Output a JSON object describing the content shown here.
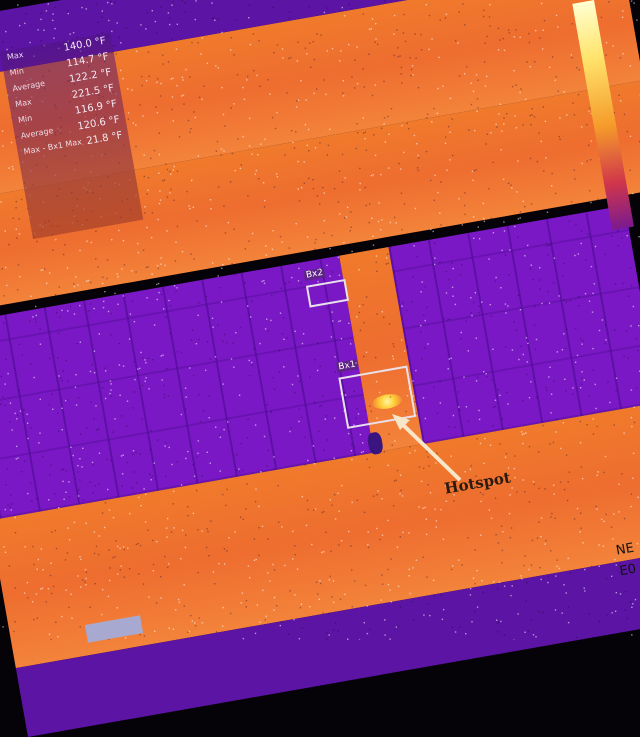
{
  "image": {
    "kind": "thermal infrared photo of solar panel rooftop",
    "palette": "iron",
    "colors": {
      "cool": "#7b18c6",
      "mid": "#ee6d2f",
      "hot": "#ffe36a",
      "background": "#050208"
    }
  },
  "readout": {
    "rows": [
      {
        "label": "Max",
        "value": "140.0 °F"
      },
      {
        "label": "Min",
        "value": "114.7 °F"
      },
      {
        "label": "Average",
        "value": "122.2 °F"
      },
      {
        "label": "Max",
        "value": "221.5 °F"
      },
      {
        "label": "Min",
        "value": "116.9 °F"
      },
      {
        "label": "Average",
        "value": "120.6 °F"
      },
      {
        "label": "Max - Bx1 Max",
        "value": "21.8 °F"
      }
    ]
  },
  "regions": [
    {
      "label": "Bx2"
    },
    {
      "label": "Bx1"
    }
  ],
  "annotation": {
    "text": "Hotspot"
  },
  "corner": {
    "lines": [
      "NE",
      "E0"
    ]
  }
}
